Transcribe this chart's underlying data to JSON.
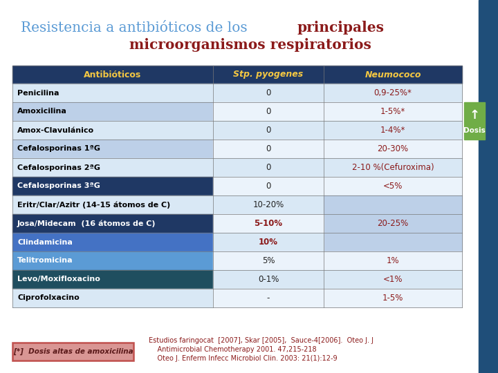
{
  "title_normal": "Resistencia a antibióticos de los ",
  "title_bold_line1": "principales",
  "title_bold_line2": "microorganismos respiratorios",
  "title_color_normal": "#5B9BD5",
  "title_color_bold": "#8B1A1A",
  "bg_color": "#FFFFFF",
  "right_bar_color": "#1F4E79",
  "header_bg": "#1F3864",
  "header_text_color": "#F5C842",
  "col1_header": "Antibióticos",
  "col2_header": "Stp. pyogenes",
  "col3_header": "Neumococo",
  "rows": [
    {
      "antibiotic": "Penicilina",
      "col1_bg": "#D9E8F5",
      "col1_txt": "#000000",
      "stp": "0",
      "stp_bold": false,
      "neu": "0,9-25%*",
      "neu_span": false
    },
    {
      "antibiotic": "Amoxicilina",
      "col1_bg": "#BDD0E8",
      "col1_txt": "#000000",
      "stp": "0",
      "stp_bold": false,
      "neu": "1-5%*",
      "neu_span": false
    },
    {
      "antibiotic": "Amox-Clavulánico",
      "col1_bg": "#D9E8F5",
      "col1_txt": "#000000",
      "stp": "0",
      "stp_bold": false,
      "neu": "1-4%*",
      "neu_span": false
    },
    {
      "antibiotic": "Cefalosporinas 1ªG",
      "col1_bg": "#BDD0E8",
      "col1_txt": "#000000",
      "stp": "0",
      "stp_bold": false,
      "neu": "20-30%",
      "neu_span": false
    },
    {
      "antibiotic": "Cefalosporinas 2ªG",
      "col1_bg": "#D9E8F5",
      "col1_txt": "#000000",
      "stp": "0",
      "stp_bold": false,
      "neu": "2-10 %(Cefuroxima)",
      "neu_span": false
    },
    {
      "antibiotic": "Cefalosporinas 3ªG",
      "col1_bg": "#1F3864",
      "col1_txt": "#FFFFFF",
      "stp": "0",
      "stp_bold": false,
      "neu": "<5%",
      "neu_span": false
    },
    {
      "antibiotic": "Eritr/Clar/Azitr (14-15 átomos de C)",
      "col1_bg": "#D9E8F5",
      "col1_txt": "#000000",
      "stp": "10-20%",
      "stp_bold": false,
      "neu": "",
      "neu_span": true
    },
    {
      "antibiotic": "Josa/Midecam  (16 átomos de C)",
      "col1_bg": "#1F3864",
      "col1_txt": "#FFFFFF",
      "stp": "5-10%",
      "stp_bold": true,
      "neu": "20-25%",
      "neu_span": true
    },
    {
      "antibiotic": "Clindamicina",
      "col1_bg": "#4472C4",
      "col1_txt": "#FFFFFF",
      "stp": "10%",
      "stp_bold": true,
      "neu": "",
      "neu_span": true
    },
    {
      "antibiotic": "Telitromicina",
      "col1_bg": "#5B9BD5",
      "col1_txt": "#FFFFFF",
      "stp": "5%",
      "stp_bold": false,
      "neu": "1%",
      "neu_span": false
    },
    {
      "antibiotic": "Levo/Moxifloxacino",
      "col1_bg": "#1F4E5F",
      "col1_txt": "#FFFFFF",
      "stp": "0-1%",
      "stp_bold": false,
      "neu": "<1%",
      "neu_span": false
    },
    {
      "antibiotic": "Ciprofolxacino",
      "col1_bg": "#D9E8F5",
      "col1_txt": "#000000",
      "stp": "-",
      "stp_bold": false,
      "neu": "1-5%",
      "neu_span": false
    }
  ],
  "span_rows": [
    6,
    7,
    8
  ],
  "span_neu_text": "20-25%",
  "span_neu_text_row": 7,
  "dosis_color": "#70AD47",
  "footnote_left_text": "[*]  Dosis altas de amoxicilina",
  "footnote_left_bg": "#D99694",
  "footnote_left_border": "#C0504D",
  "footnote_right_lines": [
    "Estudios faringocat  [2007], Skar [2005],  Sauce-4[2006].  Oteo J. J",
    "    Antimicrobial Chemotherapy 2001. 47,215-218",
    "    Oteo J. Enferm Infecc Microbiol Clin. 2003: 21(1):12-9"
  ],
  "footnote_color": "#8B1A1A"
}
